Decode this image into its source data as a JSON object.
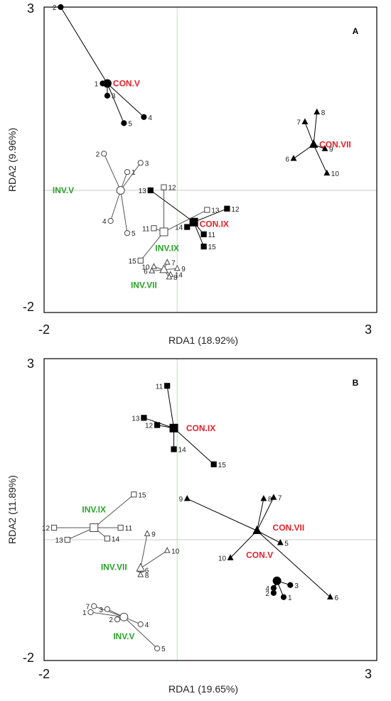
{
  "chart_data": [
    {
      "type": "scatter",
      "panel_label": "A",
      "xlabel": "RDA1 (18.92%)",
      "ylabel": "RDA2 (9.96%)",
      "xlim": [
        -2,
        3
      ],
      "ylim": [
        -2,
        3
      ],
      "x_ticks": [
        "-2",
        "3"
      ],
      "y_ticks": [
        "3",
        "-2"
      ],
      "groups": [
        {
          "name": "CON.V",
          "marker": "filled-circle",
          "color": "#e8202a",
          "label_x": -1.05,
          "label_y": 1.75,
          "label_anchor": "start",
          "centroid": [
            -1.05,
            1.75
          ],
          "points": [
            {
              "id": "1",
              "x": -1.12,
              "y": 1.75
            },
            {
              "id": "2",
              "x": -1.75,
              "y": 3.0
            },
            {
              "id": "3",
              "x": -1.05,
              "y": 1.55
            },
            {
              "id": "4",
              "x": -0.5,
              "y": 1.2
            },
            {
              "id": "5",
              "x": -0.8,
              "y": 1.1
            }
          ]
        },
        {
          "name": "CON.VII",
          "marker": "filled-triangle",
          "color": "#e8202a",
          "label_x": 2.05,
          "label_y": 0.75,
          "label_anchor": "start",
          "centroid": [
            2.05,
            0.75
          ],
          "points": [
            {
              "id": "7",
              "x": 1.92,
              "y": 1.12
            },
            {
              "id": "8",
              "x": 2.1,
              "y": 1.28
            },
            {
              "id": "9",
              "x": 2.22,
              "y": 0.68
            },
            {
              "id": "6",
              "x": 1.75,
              "y": 0.52
            },
            {
              "id": "10",
              "x": 2.25,
              "y": 0.28
            }
          ]
        },
        {
          "name": "CON.IX",
          "marker": "filled-square",
          "color": "#e8202a",
          "label_x": 0.25,
          "label_y": -0.55,
          "label_anchor": "start",
          "centroid": [
            0.25,
            -0.52
          ],
          "points": [
            {
              "id": "13",
              "x": -0.4,
              "y": 0.0
            },
            {
              "id": "12",
              "x": 0.75,
              "y": -0.3
            },
            {
              "id": "14",
              "x": 0.15,
              "y": -0.6
            },
            {
              "id": "11",
              "x": 0.4,
              "y": -0.72
            },
            {
              "id": "15",
              "x": 0.4,
              "y": -0.92
            }
          ]
        },
        {
          "name": "INV.V",
          "marker": "open-circle",
          "color": "#2aa42a",
          "label_x": -1.55,
          "label_y": 0.0,
          "label_anchor": "end",
          "centroid": [
            -0.85,
            0.0
          ],
          "points": [
            {
              "id": "2",
              "x": -1.1,
              "y": 0.6
            },
            {
              "id": "1",
              "x": -0.75,
              "y": 0.3
            },
            {
              "id": "3",
              "x": -0.55,
              "y": 0.45
            },
            {
              "id": "4",
              "x": -1.0,
              "y": -0.5
            },
            {
              "id": "5",
              "x": -0.75,
              "y": -0.7
            }
          ]
        },
        {
          "name": "INV.IX",
          "marker": "open-square",
          "color": "#2aa42a",
          "label_x": -0.15,
          "label_y": -0.95,
          "label_anchor": "middle",
          "centroid": [
            -0.2,
            -0.68
          ],
          "points": [
            {
              "id": "12",
              "x": -0.2,
              "y": 0.05
            },
            {
              "id": "13",
              "x": 0.45,
              "y": -0.32
            },
            {
              "id": "11",
              "x": -0.35,
              "y": -0.62
            },
            {
              "id": "15",
              "x": -0.55,
              "y": -1.15
            }
          ]
        },
        {
          "name": "INV.VII",
          "marker": "open-triangle",
          "color": "#2aa42a",
          "label_x": -0.5,
          "label_y": -1.55,
          "label_anchor": "middle",
          "centroid": [
            -0.2,
            -1.3
          ],
          "points": [
            {
              "id": "7",
              "x": -0.15,
              "y": -1.18
            },
            {
              "id": "10",
              "x": -0.35,
              "y": -1.25
            },
            {
              "id": "9",
              "x": 0.0,
              "y": -1.28
            },
            {
              "id": "6",
              "x": -0.38,
              "y": -1.32
            },
            {
              "id": "14",
              "x": -0.1,
              "y": -1.38
            },
            {
              "id": "8",
              "x": -0.12,
              "y": -1.42
            }
          ]
        }
      ]
    },
    {
      "type": "scatter",
      "panel_label": "B",
      "xlabel": "RDA1 (19.65%)",
      "ylabel": "RDA2 (11.89%)",
      "xlim": [
        -2,
        3
      ],
      "ylim": [
        -2,
        3
      ],
      "x_ticks": [
        "-2",
        "3"
      ],
      "y_ticks": [
        "3",
        "-2"
      ],
      "groups": [
        {
          "name": "CON.IX",
          "marker": "filled-square",
          "color": "#e8202a",
          "label_x": 0.05,
          "label_y": 1.85,
          "label_anchor": "start",
          "centroid": [
            -0.05,
            1.85
          ],
          "points": [
            {
              "id": "11",
              "x": -0.15,
              "y": 2.55
            },
            {
              "id": "13",
              "x": -0.5,
              "y": 2.02
            },
            {
              "id": "12",
              "x": -0.3,
              "y": 1.9
            },
            {
              "id": "14",
              "x": -0.05,
              "y": 1.5
            },
            {
              "id": "15",
              "x": 0.55,
              "y": 1.25
            }
          ]
        },
        {
          "name": "CON.VII",
          "marker": "filled-triangle",
          "color": "#e8202a",
          "label_x": 1.35,
          "label_y": 0.2,
          "label_anchor": "start",
          "centroid": [
            1.2,
            0.15
          ],
          "points": [
            {
              "id": "9",
              "x": 0.15,
              "y": 0.68
            },
            {
              "id": "8",
              "x": 1.3,
              "y": 0.68
            },
            {
              "id": "7",
              "x": 1.45,
              "y": 0.7
            },
            {
              "id": "5",
              "x": 1.55,
              "y": -0.05
            },
            {
              "id": "10",
              "x": 0.8,
              "y": -0.3
            },
            {
              "id": "6",
              "x": 2.3,
              "y": -0.95
            }
          ]
        },
        {
          "name": "CON.V",
          "marker": "filled-circle",
          "color": "#e8202a",
          "label_x": 0.95,
          "label_y": -0.25,
          "label_anchor": "start",
          "centroid": [
            1.5,
            -0.68
          ],
          "points": [
            {
              "id": "4",
              "x": 1.45,
              "y": -0.8
            },
            {
              "id": "3",
              "x": 1.7,
              "y": -0.75
            },
            {
              "id": "2",
              "x": 1.45,
              "y": -0.88
            },
            {
              "id": "1",
              "x": 1.6,
              "y": -0.95
            }
          ]
        },
        {
          "name": "INV.IX",
          "marker": "open-square",
          "color": "#2aa42a",
          "label_x": -1.25,
          "label_y": 0.5,
          "label_anchor": "middle",
          "centroid": [
            -1.25,
            0.2
          ],
          "points": [
            {
              "id": "15",
              "x": -0.65,
              "y": 0.75
            },
            {
              "id": "12",
              "x": -1.85,
              "y": 0.2
            },
            {
              "id": "11",
              "x": -0.85,
              "y": 0.2
            },
            {
              "id": "13",
              "x": -1.65,
              "y": 0.0
            },
            {
              "id": "14",
              "x": -1.05,
              "y": 0.02
            }
          ]
        },
        {
          "name": "INV.VII",
          "marker": "open-triangle",
          "color": "#2aa42a",
          "label_x": -0.95,
          "label_y": -0.45,
          "label_anchor": "middle",
          "centroid": [
            -0.55,
            -0.47
          ],
          "points": [
            {
              "id": "9",
              "x": -0.45,
              "y": 0.1
            },
            {
              "id": "10",
              "x": -0.15,
              "y": -0.18
            },
            {
              "id": "6",
              "x": -0.55,
              "y": -0.5
            },
            {
              "id": "8",
              "x": -0.55,
              "y": -0.58
            }
          ]
        },
        {
          "name": "INV.V",
          "marker": "open-circle",
          "color": "#2aa42a",
          "label_x": -0.8,
          "label_y": -1.6,
          "label_anchor": "middle",
          "centroid": [
            -0.8,
            -1.28
          ],
          "points": [
            {
              "id": "7",
              "x": -1.25,
              "y": -1.1
            },
            {
              "id": "3",
              "x": -1.05,
              "y": -1.15
            },
            {
              "id": "1",
              "x": -1.3,
              "y": -1.2
            },
            {
              "id": "2",
              "x": -0.9,
              "y": -1.32
            },
            {
              "id": "4",
              "x": -0.55,
              "y": -1.4
            },
            {
              "id": "5",
              "x": -0.3,
              "y": -1.8
            }
          ]
        }
      ]
    }
  ]
}
